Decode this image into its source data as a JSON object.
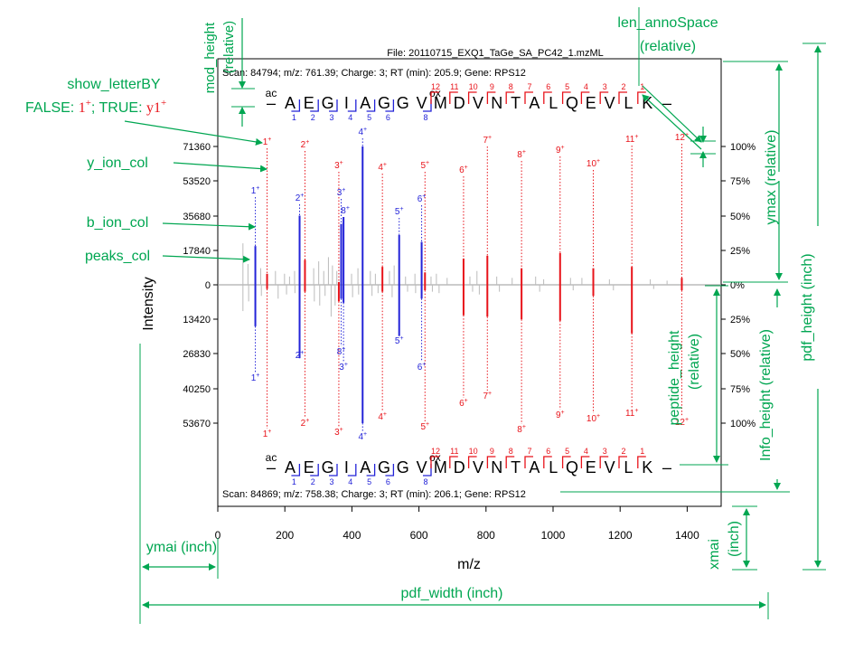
{
  "file_title": "File: 20110715_EXQ1_TaGe_SA_PC42_1.mzML",
  "scan_top": "Scan: 84794; m/z: 761.39; Charge: 3; RT (min): 205.9; Gene: RPS12",
  "scan_bottom": "Scan: 84869; m/z: 758.38; Charge: 3; RT (min): 206.1; Gene: RPS12",
  "peptide_letters": [
    "A",
    "E",
    "G",
    "I",
    "A",
    "G",
    "G",
    "V",
    "M",
    "D",
    "V",
    "N",
    "T",
    "A",
    "L",
    "Q",
    "E",
    "V",
    "L",
    "K"
  ],
  "n_term_mod": "ac",
  "m_mod": "ox",
  "b_ion_numbers": [
    "1",
    "2",
    "3",
    "4",
    "5",
    "6",
    "8"
  ],
  "y_ion_numbers": [
    "12",
    "11",
    "10",
    "9",
    "8",
    "7",
    "6",
    "5",
    "4",
    "3",
    "2",
    "1"
  ],
  "dash": "–",
  "colors": {
    "y_ion": "#e8131a",
    "b_ion": "#2323d8",
    "annotation": "#00a651",
    "peaks": "#bbbbbb"
  },
  "annotations": {
    "mod_height": "mod_height",
    "mod_height_rel": "(relative)",
    "len_annoSpace": "len_annoSpace",
    "len_annoSpace_rel": "(relative)",
    "show_letterBY": "show_letterBY",
    "show_letterBY_false": "FALSE: ",
    "show_letterBY_1plus": "1",
    "show_letterBY_true": "; TRUE: ",
    "show_letterBY_y1plus": "y1",
    "sup_plus": "+",
    "y_ion_col": "y_ion_col",
    "b_ion_col": "b_ion_col",
    "peaks_col": "peaks_col",
    "ymax": "ymax (relative)",
    "pdf_height": "pdf_height (inch)",
    "info_height": "Info_height (relative)",
    "peptide_height": "peptide_height",
    "peptide_height_rel": "(relative)",
    "ymai": "ymai (inch)",
    "xmai": "xmai",
    "xmai_unit": "(inch)",
    "pdf_width": "pdf_width (inch)"
  },
  "chart_data": {
    "type": "bar",
    "mirror": true,
    "xlabel": "m/z",
    "ylabel": "Intensity",
    "xlim": [
      0,
      1450
    ],
    "x_ticks": [
      "0",
      "200",
      "400",
      "600",
      "800",
      "1000",
      "1200",
      "1400"
    ],
    "y_ticks_left_top": [
      "71360",
      "53520",
      "35680",
      "17840",
      "0"
    ],
    "y_ticks_left_bottom": [
      "13420",
      "26830",
      "40250",
      "53670"
    ],
    "y_ticks_right": [
      "100%",
      "75%",
      "50%",
      "25%",
      "0%",
      "25%",
      "50%",
      "75%",
      "100%"
    ],
    "top_b_ions": [
      {
        "label": "1",
        "mz": 112,
        "rel": 0.28
      },
      {
        "label": "2",
        "mz": 244,
        "rel": 0.5
      },
      {
        "label": "3",
        "mz": 368,
        "rel": 0.44
      },
      {
        "label": "8",
        "mz": 375,
        "rel": 0.49
      },
      {
        "label": "4",
        "mz": 432,
        "rel": 1.0
      },
      {
        "label": "5",
        "mz": 541,
        "rel": 0.36
      },
      {
        "label": "6",
        "mz": 608,
        "rel": 0.31
      }
    ],
    "top_y_ions": [
      {
        "label": "1",
        "mz": 147,
        "rel": 0.08
      },
      {
        "label": "2",
        "mz": 260,
        "rel": 0.18
      },
      {
        "label": "3",
        "mz": 361,
        "rel": 0.02
      },
      {
        "label": "4",
        "mz": 491,
        "rel": 0.13
      },
      {
        "label": "5",
        "mz": 618,
        "rel": 0.09
      },
      {
        "label": "6",
        "mz": 733,
        "rel": 0.19
      },
      {
        "label": "7",
        "mz": 804,
        "rel": 0.21
      },
      {
        "label": "8",
        "mz": 906,
        "rel": 0.12
      },
      {
        "label": "9",
        "mz": 1021,
        "rel": 0.23
      },
      {
        "label": "10",
        "mz": 1120,
        "rel": 0.12
      },
      {
        "label": "11",
        "mz": 1235,
        "rel": 0.13
      },
      {
        "label": "12",
        "mz": 1384,
        "rel": 0.05
      }
    ],
    "bottom_b_ions": [
      {
        "label": "1",
        "mz": 112,
        "rel": 0.3
      },
      {
        "label": "2",
        "mz": 244,
        "rel": 0.53
      },
      {
        "label": "8",
        "mz": 368,
        "rel": 0.1
      },
      {
        "label": "3",
        "mz": 375,
        "rel": 0.13
      },
      {
        "label": "4",
        "mz": 432,
        "rel": 1.0
      },
      {
        "label": "5",
        "mz": 541,
        "rel": 0.37
      },
      {
        "label": "6",
        "mz": 608,
        "rel": 0.1
      }
    ],
    "bottom_y_ions": [
      {
        "label": "1",
        "mz": 147,
        "rel": 0.03
      },
      {
        "label": "2",
        "mz": 260,
        "rel": 0.05
      },
      {
        "label": "3",
        "mz": 361,
        "rel": 0.12
      },
      {
        "label": "4",
        "mz": 491,
        "rel": 0.05
      },
      {
        "label": "5",
        "mz": 618,
        "rel": 0.04
      },
      {
        "label": "6",
        "mz": 733,
        "rel": 0.22
      },
      {
        "label": "7",
        "mz": 804,
        "rel": 0.23
      },
      {
        "label": "8",
        "mz": 906,
        "rel": 0.25
      },
      {
        "label": "9",
        "mz": 1021,
        "rel": 0.26
      },
      {
        "label": "10",
        "mz": 1120,
        "rel": 0.08
      },
      {
        "label": "11",
        "mz": 1235,
        "rel": 0.35
      },
      {
        "label": "12",
        "mz": 1384,
        "rel": 0.04
      }
    ],
    "top_other_peaks": [
      {
        "mz": 75,
        "rel": 0.3
      },
      {
        "mz": 90,
        "rel": 0.15
      },
      {
        "mz": 128,
        "rel": 0.12
      },
      {
        "mz": 172,
        "rel": 0.1
      },
      {
        "mz": 199,
        "rel": 0.08
      },
      {
        "mz": 214,
        "rel": 0.06
      },
      {
        "mz": 229,
        "rel": 0.1
      },
      {
        "mz": 286,
        "rel": 0.12
      },
      {
        "mz": 301,
        "rel": 0.17
      },
      {
        "mz": 316,
        "rel": 0.1
      },
      {
        "mz": 330,
        "rel": 0.2
      },
      {
        "mz": 342,
        "rel": 0.14
      },
      {
        "mz": 355,
        "rel": 0.1
      },
      {
        "mz": 399,
        "rel": 0.08
      },
      {
        "mz": 418,
        "rel": 0.12
      },
      {
        "mz": 455,
        "rel": 0.1
      },
      {
        "mz": 470,
        "rel": 0.08
      },
      {
        "mz": 512,
        "rel": 0.1
      },
      {
        "mz": 526,
        "rel": 0.14
      },
      {
        "mz": 560,
        "rel": 0.06
      },
      {
        "mz": 588,
        "rel": 0.08
      },
      {
        "mz": 636,
        "rel": 0.06
      },
      {
        "mz": 652,
        "rel": 0.08
      },
      {
        "mz": 684,
        "rel": 0.05
      },
      {
        "mz": 752,
        "rel": 0.06
      },
      {
        "mz": 773,
        "rel": 0.1
      },
      {
        "mz": 832,
        "rel": 0.06
      },
      {
        "mz": 878,
        "rel": 0.05
      },
      {
        "mz": 948,
        "rel": 0.06
      },
      {
        "mz": 972,
        "rel": 0.04
      },
      {
        "mz": 1052,
        "rel": 0.05
      },
      {
        "mz": 1086,
        "rel": 0.05
      },
      {
        "mz": 1168,
        "rel": 0.04
      },
      {
        "mz": 1290,
        "rel": 0.04
      },
      {
        "mz": 1340,
        "rel": 0.03
      }
    ],
    "bottom_other_peaks": [
      {
        "mz": 75,
        "rel": 0.19
      },
      {
        "mz": 92,
        "rel": 0.12
      },
      {
        "mz": 130,
        "rel": 0.08
      },
      {
        "mz": 180,
        "rel": 0.1
      },
      {
        "mz": 205,
        "rel": 0.07
      },
      {
        "mz": 230,
        "rel": 0.06
      },
      {
        "mz": 288,
        "rel": 0.12
      },
      {
        "mz": 304,
        "rel": 0.15
      },
      {
        "mz": 320,
        "rel": 0.08
      },
      {
        "mz": 338,
        "rel": 0.23
      },
      {
        "mz": 350,
        "rel": 0.15
      },
      {
        "mz": 402,
        "rel": 0.09
      },
      {
        "mz": 420,
        "rel": 0.07
      },
      {
        "mz": 460,
        "rel": 0.08
      },
      {
        "mz": 478,
        "rel": 0.06
      },
      {
        "mz": 520,
        "rel": 0.09
      },
      {
        "mz": 566,
        "rel": 0.05
      },
      {
        "mz": 590,
        "rel": 0.06
      },
      {
        "mz": 640,
        "rel": 0.05
      },
      {
        "mz": 660,
        "rel": 0.06
      },
      {
        "mz": 760,
        "rel": 0.05
      },
      {
        "mz": 780,
        "rel": 0.07
      },
      {
        "mz": 840,
        "rel": 0.05
      },
      {
        "mz": 960,
        "rel": 0.05
      },
      {
        "mz": 1060,
        "rel": 0.04
      },
      {
        "mz": 1180,
        "rel": 0.04
      },
      {
        "mz": 1300,
        "rel": 0.03
      }
    ]
  }
}
